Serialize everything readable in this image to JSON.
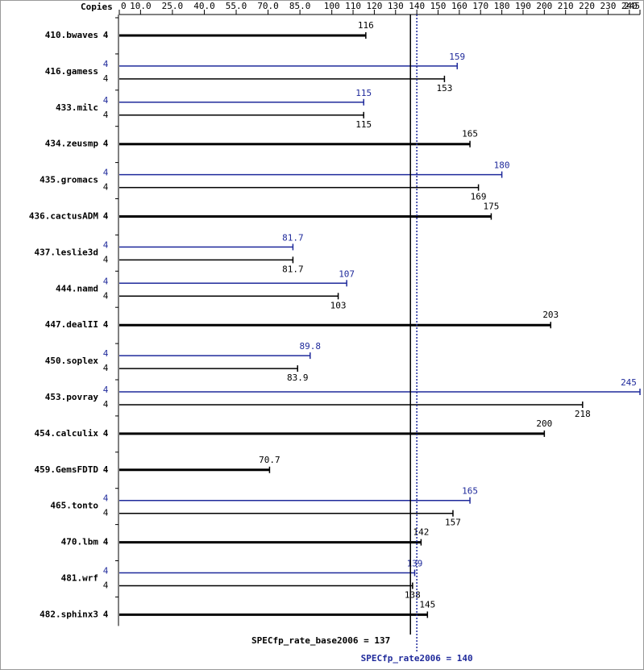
{
  "chart_data": {
    "type": "bar",
    "copies_header": "Copies",
    "xlim": [
      0,
      245
    ],
    "xticks": [
      0,
      {
        "value": 10,
        "label": "10.0"
      },
      {
        "value": 25,
        "label": "25.0"
      },
      {
        "value": 40,
        "label": "40.0"
      },
      {
        "value": 55,
        "label": "55.0"
      },
      {
        "value": 70,
        "label": "70.0"
      },
      {
        "value": 85,
        "label": "85.0"
      },
      100,
      110,
      120,
      130,
      140,
      150,
      160,
      170,
      180,
      190,
      200,
      210,
      220,
      230,
      240,
      245
    ],
    "base_color": "#000000",
    "peak_color": "#1f2a9b",
    "benchmarks": [
      {
        "name": "410.bwaves",
        "copies": 4,
        "base": 116
      },
      {
        "name": "416.gamess",
        "copies": 4,
        "base": 153,
        "peak": 159
      },
      {
        "name": "433.milc",
        "copies": 4,
        "base": 115,
        "peak": 115
      },
      {
        "name": "434.zeusmp",
        "copies": 4,
        "base": 165
      },
      {
        "name": "435.gromacs",
        "copies": 4,
        "base": 169,
        "peak": 180
      },
      {
        "name": "436.cactusADM",
        "copies": 4,
        "base": 175
      },
      {
        "name": "437.leslie3d",
        "copies": 4,
        "base": 81.7,
        "peak": 81.7
      },
      {
        "name": "444.namd",
        "copies": 4,
        "base": 103,
        "peak": 107
      },
      {
        "name": "447.dealII",
        "copies": 4,
        "base": 203
      },
      {
        "name": "450.soplex",
        "copies": 4,
        "base": 83.9,
        "peak": 89.8
      },
      {
        "name": "453.povray",
        "copies": 4,
        "base": 218,
        "peak": 245
      },
      {
        "name": "454.calculix",
        "copies": 4,
        "base": 200
      },
      {
        "name": "459.GemsFDTD",
        "copies": 4,
        "base": 70.7
      },
      {
        "name": "465.tonto",
        "copies": 4,
        "base": 157,
        "peak": 165
      },
      {
        "name": "470.lbm",
        "copies": 4,
        "base": 142
      },
      {
        "name": "481.wrf",
        "copies": 4,
        "base": 138,
        "peak": 139
      },
      {
        "name": "482.sphinx3",
        "copies": 4,
        "base": 145
      }
    ],
    "base_reference": {
      "label": "SPECfp_rate_base2006 = 137",
      "value": 137
    },
    "peak_reference": {
      "label": "SPECfp_rate2006 = 140",
      "value": 140
    }
  }
}
